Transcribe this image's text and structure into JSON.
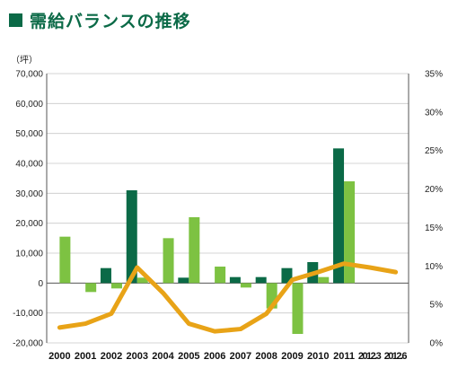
{
  "chart_data": {
    "type": "bar+line",
    "title": "需給バランスの推移",
    "y_unit_label": "（坪）",
    "categories": [
      "2000",
      "2001",
      "2002",
      "2003",
      "2004",
      "2005",
      "2006",
      "2007",
      "2008",
      "2009",
      "2010",
      "2011",
      "2012.3",
      "2012.6"
    ],
    "y_left": {
      "min": -20000,
      "max": 70000,
      "step": 10000,
      "ticks": [
        "-20,000",
        "-10,000",
        "0",
        "10,000",
        "20,000",
        "30,000",
        "40,000",
        "50,000",
        "60,000",
        "70,000"
      ]
    },
    "y_right": {
      "min": 0,
      "max": 0.35,
      "step": 0.05,
      "ticks": [
        "0%",
        "5%",
        "10%",
        "15%",
        "20%",
        "25%",
        "30%",
        "35%"
      ]
    },
    "grid": true,
    "series": [
      {
        "kind": "bar",
        "color": "#0b6a47",
        "values": [
          0,
          0,
          5000,
          31000,
          0,
          1800,
          0,
          2000,
          2000,
          5000,
          7000,
          45000,
          null,
          null
        ]
      },
      {
        "kind": "bar",
        "color": "#7dc242",
        "values": [
          15500,
          -3000,
          -1800,
          1800,
          15000,
          22000,
          5500,
          -1500,
          -8500,
          -17000,
          2000,
          34000,
          null,
          null
        ]
      },
      {
        "kind": "line",
        "axis": "right",
        "color": "#e8a317",
        "values": [
          0.02,
          0.025,
          0.038,
          0.098,
          0.065,
          0.025,
          0.015,
          0.018,
          0.038,
          0.082,
          0.092,
          0.103,
          0.098,
          0.092
        ]
      }
    ]
  }
}
